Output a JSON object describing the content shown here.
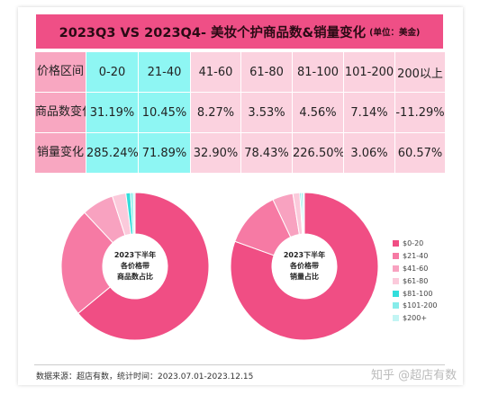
{
  "title": "2023Q3 VS 2023Q4- 美妆个护商品数&销量变化",
  "unit": "(单位：美金)",
  "table": {
    "header_label": "价格区间",
    "columns": [
      "0-20",
      "21-40",
      "41-60",
      "61-80",
      "81-100",
      "101-200",
      "200以上"
    ],
    "rows": [
      {
        "label": "商品数变化",
        "values": [
          "31.19%",
          "10.45%",
          "8.27%",
          "3.53%",
          "4.56%",
          "7.14%",
          "-11.29%"
        ]
      },
      {
        "label": "销量变化",
        "values": [
          "285.24%",
          "71.89%",
          "32.90%",
          "78.43%",
          "226.50%",
          "3.06%",
          "60.57%"
        ]
      }
    ]
  },
  "chart_data": [
    {
      "type": "pie",
      "title": "2023下半年各价格带商品数占比",
      "categories": [
        "$0-20",
        "$21-40",
        "$41-60",
        "$61-80",
        "$81-100",
        "$101-200",
        "$200+"
      ],
      "values": [
        64,
        24,
        7,
        3,
        1,
        0.6,
        0.4
      ]
    },
    {
      "type": "pie",
      "title": "2023下半年各价格带销量占比",
      "categories": [
        "$0-20",
        "$21-40",
        "$41-60",
        "$61-80",
        "$81-100",
        "$101-200",
        "$200+"
      ],
      "values": [
        80.5,
        12.5,
        4.5,
        1.5,
        0.3,
        0.4,
        0.3
      ]
    }
  ],
  "legend": {
    "items": [
      {
        "label": "$0-20",
        "color": "#f04e84"
      },
      {
        "label": "$21-40",
        "color": "#f67aa4"
      },
      {
        "label": "$41-60",
        "color": "#f8a2c0"
      },
      {
        "label": "$61-80",
        "color": "#fbcadb"
      },
      {
        "label": "$81-100",
        "color": "#33dedc"
      },
      {
        "label": "$101-200",
        "color": "#86ecea"
      },
      {
        "label": "$200+",
        "color": "#c2f5f4"
      }
    ]
  },
  "center_labels": {
    "left": [
      "2023下半年",
      "各价格带",
      "商品数占比"
    ],
    "right": [
      "2023下半年",
      "各价格带",
      "销量占比"
    ]
  },
  "footer": {
    "source": "数据来源：超店有数，统计时间：2023.07.01-2023.12.15",
    "watermark": "知乎 @超店有数"
  }
}
